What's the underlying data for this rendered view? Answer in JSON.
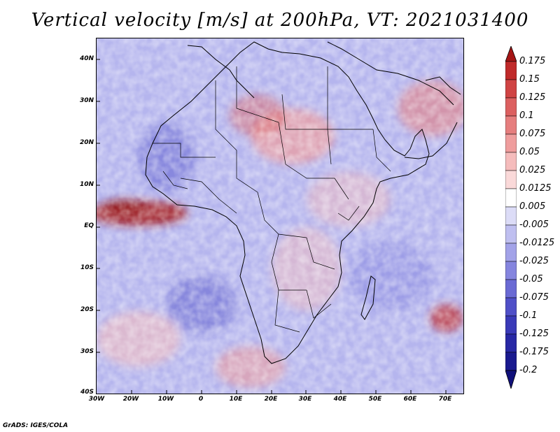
{
  "title": "Vertical velocity [m/s] at 200hPa, VT: 2021031400",
  "map": {
    "lat_labels": [
      "40N",
      "30N",
      "20N",
      "10N",
      "EQ",
      "10S",
      "20S",
      "30S",
      "40S"
    ],
    "lon_labels": [
      "30W",
      "20W",
      "10W",
      "0",
      "10E",
      "20E",
      "30E",
      "40E",
      "50E",
      "60E",
      "70E"
    ],
    "lat_range": [
      -40,
      45
    ],
    "lon_range": [
      -30,
      75
    ]
  },
  "colorbar": {
    "labels": [
      "0.175",
      "0.15",
      "0.125",
      "0.1",
      "0.075",
      "0.05",
      "0.025",
      "0.0125",
      "0.005",
      "-0.005",
      "-0.0125",
      "-0.025",
      "-0.05",
      "-0.075",
      "-0.1",
      "-0.125",
      "-0.175",
      "-0.2"
    ],
    "colors": [
      "#a51515",
      "#c02a2a",
      "#d04444",
      "#dc6060",
      "#e67e7e",
      "#ef9d9d",
      "#f5bcbc",
      "#fad9d9",
      "#ffffff",
      "#dcdcf7",
      "#bfbff0",
      "#a2a2e8",
      "#8585df",
      "#6a6ad4",
      "#5050c8",
      "#3a3ab8",
      "#2828a5",
      "#1a1a8f",
      "#10107a"
    ]
  },
  "footer": "GrADS: IGES/COLA"
}
